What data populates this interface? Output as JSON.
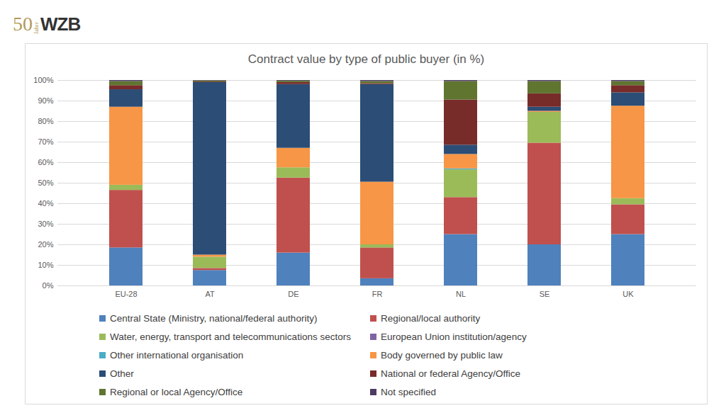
{
  "logo": {
    "number": "50",
    "word": "Jahre",
    "name": "WZB"
  },
  "chart_data": {
    "type": "bar",
    "title": "Contract value by type of public buyer (in %)",
    "categories": [
      "EU-28",
      "AT",
      "DE",
      "FR",
      "NL",
      "SE",
      "UK"
    ],
    "stacked": true,
    "grid": true,
    "legend": "bottom",
    "ylim": [
      0,
      100
    ],
    "yticks": [
      {
        "value": 0,
        "label": "0%"
      },
      {
        "value": 10,
        "label": "10%"
      },
      {
        "value": 20,
        "label": "20%"
      },
      {
        "value": 30,
        "label": "30%"
      },
      {
        "value": 40,
        "label": "40%"
      },
      {
        "value": 50,
        "label": "50%"
      },
      {
        "value": 60,
        "label": "60%"
      },
      {
        "value": 70,
        "label": "70%"
      },
      {
        "value": 80,
        "label": "80%"
      },
      {
        "value": 90,
        "label": "90%"
      },
      {
        "value": 100,
        "label": "100%"
      }
    ],
    "series": [
      {
        "name": "Central State (Ministry, national/federal authority)",
        "color": "#4f81bd",
        "values": [
          18.5,
          7.5,
          16,
          3.5,
          25,
          20,
          25
        ]
      },
      {
        "name": "Regional/local authority",
        "color": "#c0504d",
        "values": [
          28,
          1,
          36.5,
          15,
          18,
          49.5,
          14.5
        ]
      },
      {
        "name": "Water, energy, transport and telecommunications sectors",
        "color": "#9bbb59",
        "values": [
          2.5,
          5.5,
          5,
          1.5,
          13.5,
          15,
          3
        ]
      },
      {
        "name": "European Union institution/agency",
        "color": "#8064a2",
        "values": [
          0,
          0,
          0,
          0,
          0,
          0,
          0
        ]
      },
      {
        "name": "Other international organisation",
        "color": "#4bacc6",
        "values": [
          0,
          0,
          0,
          0,
          0.5,
          0,
          0
        ]
      },
      {
        "name": "Body governed by public law",
        "color": "#f79646",
        "values": [
          38,
          1,
          9.5,
          30.5,
          7,
          0.5,
          45
        ]
      },
      {
        "name": "Other",
        "color": "#2c4d75",
        "values": [
          8.5,
          84,
          31,
          47.5,
          4.5,
          2,
          6.5
        ]
      },
      {
        "name": "National or federal Agency/Office",
        "color": "#772c2a",
        "values": [
          2,
          0.3,
          1,
          0.5,
          22,
          6.5,
          3.5
        ]
      },
      {
        "name": "Regional or local Agency/Office",
        "color": "#5f7530",
        "values": [
          2,
          0.5,
          0.7,
          1,
          9,
          6,
          2
        ]
      },
      {
        "name": "Not specified",
        "color": "#4d3b62",
        "values": [
          0.5,
          0.2,
          0.3,
          0.5,
          0.5,
          0.5,
          0.5
        ]
      }
    ]
  }
}
